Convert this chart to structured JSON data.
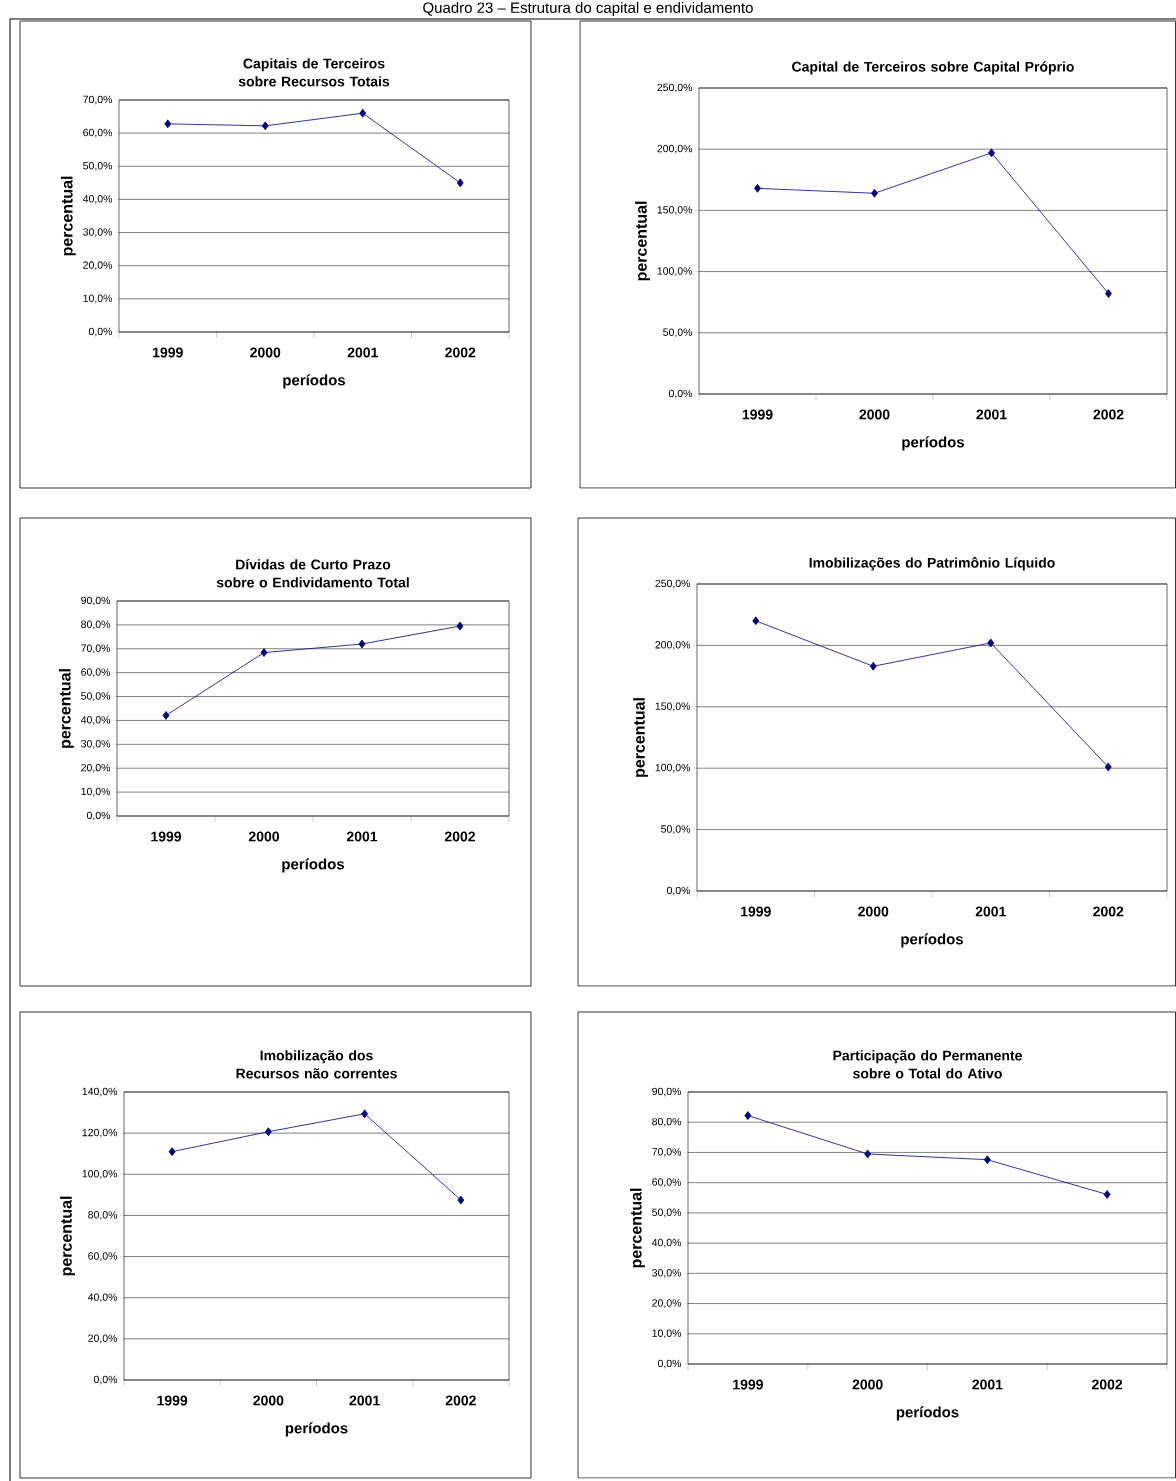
{
  "chart_data": [
    {
      "type": "other",
      "title": "Quadro 23 – Estrutura do capital e endividamento"
    },
    {
      "type": "line",
      "title": "Capitais de Terceiros sobre Recursos Totais",
      "xlabel": "períodos",
      "ylabel": "percentual",
      "categories": [
        "1999",
        "2000",
        "2001",
        "2002"
      ],
      "series": [
        {
          "color": "#000080",
          "values": [
            62.8,
            62.2,
            66.0,
            45.0
          ]
        }
      ],
      "ylim": [
        0,
        70
      ],
      "yticks": [
        {
          "value": 0,
          "label": "0,0%"
        },
        {
          "value": 10,
          "label": "10,0%"
        },
        {
          "value": 20,
          "label": "20,0%"
        },
        {
          "value": 30,
          "label": "30,0%"
        },
        {
          "value": 40,
          "label": "40,0%"
        },
        {
          "value": 50,
          "label": "50,0%"
        },
        {
          "value": 60,
          "label": "60,0%"
        },
        {
          "value": 70,
          "label": "70,0%"
        }
      ],
      "grid": "y",
      "marker": "diamond",
      "line_style": "solid"
    },
    {
      "type": "line",
      "title": "Capital de Terceiros sobre Capital Próprio",
      "xlabel": "períodos",
      "ylabel": "percentual",
      "categories": [
        "1999",
        "2000",
        "2001",
        "2002"
      ],
      "series": [
        {
          "color": "#000080",
          "values": [
            168,
            164,
            197,
            82
          ]
        }
      ],
      "ylim": [
        0,
        250
      ],
      "yticks": [
        {
          "value": 0,
          "label": "0,0%"
        },
        {
          "value": 50,
          "label": "50,0%"
        },
        {
          "value": 100,
          "label": "100,0%"
        },
        {
          "value": 150,
          "label": "150,0%"
        },
        {
          "value": 200,
          "label": "200,0%"
        },
        {
          "value": 250,
          "label": "250,0%"
        }
      ],
      "grid": "y",
      "marker": "diamond",
      "line_style": "solid"
    },
    {
      "type": "line",
      "title": "Dívidas de Curto Prazo sobre o Endividamento Total",
      "xlabel": "períodos",
      "ylabel": "percentual",
      "categories": [
        "1999",
        "2000",
        "2001",
        "2002"
      ],
      "series": [
        {
          "color": "#000080",
          "values": [
            42.1,
            68.4,
            72.0,
            79.5
          ]
        }
      ],
      "ylim": [
        0,
        90
      ],
      "yticks": [
        {
          "value": 0,
          "label": "0,0%"
        },
        {
          "value": 10,
          "label": "10,0%"
        },
        {
          "value": 20,
          "label": "20,0%"
        },
        {
          "value": 30,
          "label": "30,0%"
        },
        {
          "value": 40,
          "label": "40,0%"
        },
        {
          "value": 50,
          "label": "50,0%"
        },
        {
          "value": 60,
          "label": "60,0%"
        },
        {
          "value": 70,
          "label": "70,0%"
        },
        {
          "value": 80,
          "label": "80,0%"
        },
        {
          "value": 90,
          "label": "90,0%"
        }
      ],
      "grid": "y",
      "marker": "diamond",
      "line_style": "solid"
    },
    {
      "type": "line",
      "title": "Imobilizações do Patrimônio Líquido",
      "xlabel": "períodos",
      "ylabel": "percentual",
      "categories": [
        "1999",
        "2000",
        "2001",
        "2002"
      ],
      "series": [
        {
          "color": "#000080",
          "values": [
            220,
            183,
            202,
            101
          ]
        }
      ],
      "ylim": [
        0,
        250
      ],
      "yticks": [
        {
          "value": 0,
          "label": "0,0%"
        },
        {
          "value": 50,
          "label": "50,0%"
        },
        {
          "value": 100,
          "label": "100,0%"
        },
        {
          "value": 150,
          "label": "150,0%"
        },
        {
          "value": 200,
          "label": "200,0%"
        },
        {
          "value": 250,
          "label": "250,0%"
        }
      ],
      "grid": "y",
      "marker": "diamond",
      "line_style": "solid"
    },
    {
      "type": "line",
      "title": "Imobilização dos Recursos não correntes",
      "xlabel": "períodos",
      "ylabel": "percentual",
      "categories": [
        "1999",
        "2000",
        "2001",
        "2002"
      ],
      "series": [
        {
          "color": "#000080",
          "values": [
            111.0,
            120.7,
            129.4,
            87.5
          ]
        }
      ],
      "ylim": [
        0,
        140
      ],
      "yticks": [
        {
          "value": 0,
          "label": "0,0%"
        },
        {
          "value": 20,
          "label": "20,0%"
        },
        {
          "value": 40,
          "label": "40,0%"
        },
        {
          "value": 60,
          "label": "60,0%"
        },
        {
          "value": 80,
          "label": "80,0%"
        },
        {
          "value": 100,
          "label": "100,0%"
        },
        {
          "value": 120,
          "label": "120,0%"
        },
        {
          "value": 140,
          "label": "140,0%"
        }
      ],
      "grid": "y",
      "marker": "diamond",
      "line_style": "solid"
    },
    {
      "type": "line",
      "title": "Participação do Permanente sobre o Total do Ativo",
      "xlabel": "períodos",
      "ylabel": "percentual",
      "categories": [
        "1999",
        "2000",
        "2001",
        "2002"
      ],
      "series": [
        {
          "color": "#000080",
          "values": [
            82.2,
            69.5,
            67.6,
            56.1
          ]
        }
      ],
      "ylim": [
        0,
        90
      ],
      "yticks": [
        {
          "value": 0,
          "label": "0,0%"
        },
        {
          "value": 10,
          "label": "10,0%"
        },
        {
          "value": 20,
          "label": "20,0%"
        },
        {
          "value": 30,
          "label": "30,0%"
        },
        {
          "value": 40,
          "label": "40,0%"
        },
        {
          "value": 50,
          "label": "50,0%"
        },
        {
          "value": 60,
          "label": "60,0%"
        },
        {
          "value": 70,
          "label": "70,0%"
        },
        {
          "value": 80,
          "label": "80,0%"
        },
        {
          "value": 90,
          "label": "90,0%"
        }
      ],
      "grid": "y",
      "marker": "diamond",
      "line_style": "solid"
    }
  ]
}
